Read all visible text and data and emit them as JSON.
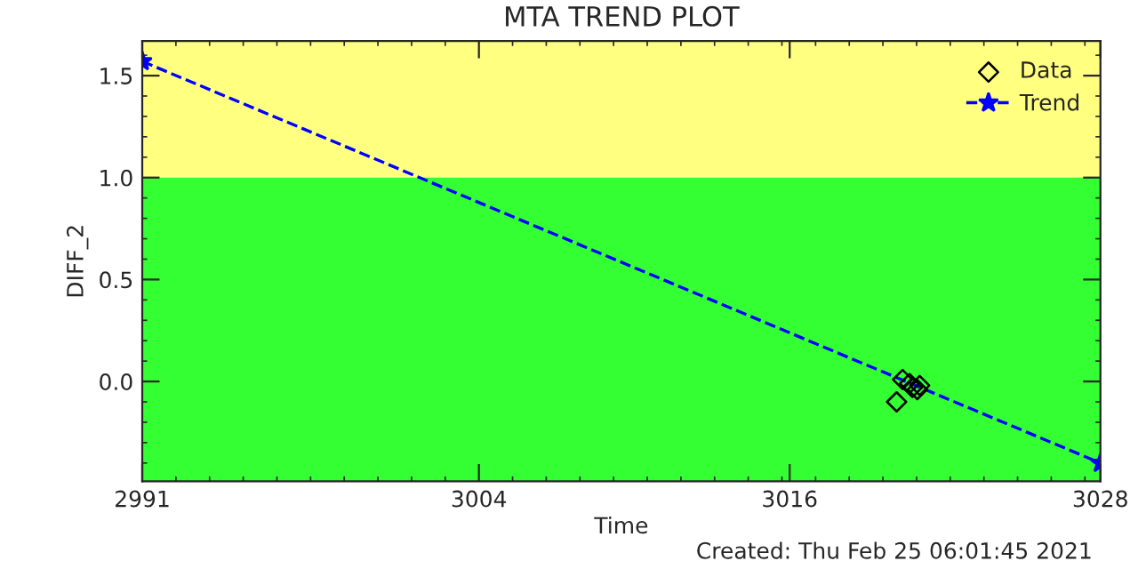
{
  "chart_data": {
    "type": "line",
    "title": "MTA TREND PLOT",
    "xlabel": "Time",
    "ylabel": "DIFF_2",
    "annotations": [
      "Created: Thu Feb 25 06:01:45 2021"
    ],
    "xlim": [
      2991,
      3028
    ],
    "xticks": [
      2991,
      3004,
      3016,
      3028
    ],
    "ylim": [
      -0.49,
      1.67
    ],
    "yticks": [
      {
        "value": 0,
        "label": "0.0"
      },
      0.5,
      {
        "value": 1,
        "label": "1.0"
      },
      1.5
    ],
    "bands": [
      {
        "axis": "y",
        "from": 1.0,
        "to": 1.67,
        "color": "#ffff80"
      },
      {
        "axis": "y",
        "from": -0.49,
        "to": 1.0,
        "color": "#33ff33"
      }
    ],
    "series": [
      {
        "name": "Data",
        "type": "scatter",
        "marker": "diamond",
        "color": "#000000",
        "x": [
          3020.13,
          3020.36,
          3020.63,
          3020.74,
          3020.93,
          3021.02
        ],
        "values": [
          -0.1,
          0.01,
          -0.01,
          -0.03,
          -0.04,
          -0.02
        ]
      },
      {
        "name": "Trend",
        "marker": "star",
        "line_style": "dashed",
        "color": "#0000ff",
        "x": [
          2991,
          3028
        ],
        "values": [
          1.57,
          -0.4
        ]
      }
    ],
    "legend": "top right",
    "grid": false
  }
}
